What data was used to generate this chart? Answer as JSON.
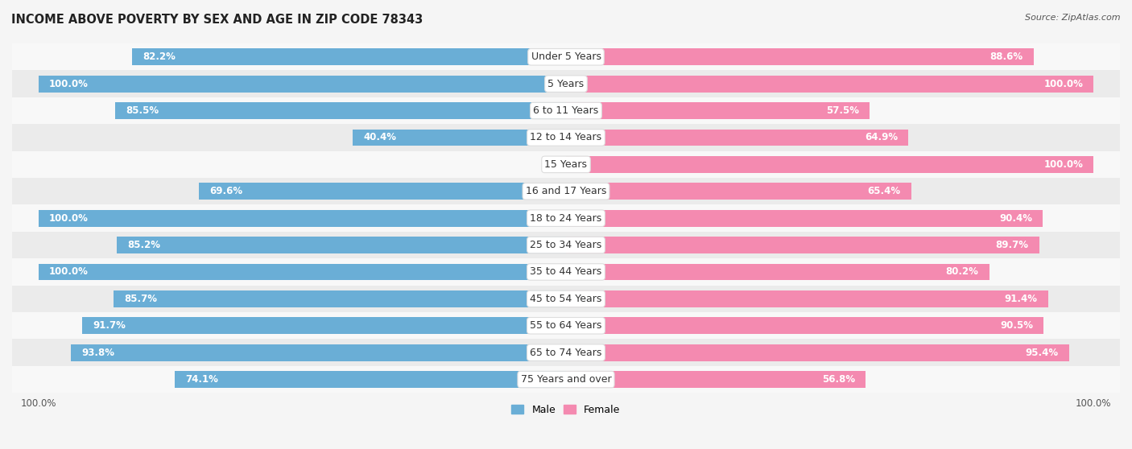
{
  "title": "INCOME ABOVE POVERTY BY SEX AND AGE IN ZIP CODE 78343",
  "source": "Source: ZipAtlas.com",
  "categories": [
    "Under 5 Years",
    "5 Years",
    "6 to 11 Years",
    "12 to 14 Years",
    "15 Years",
    "16 and 17 Years",
    "18 to 24 Years",
    "25 to 34 Years",
    "35 to 44 Years",
    "45 to 54 Years",
    "55 to 64 Years",
    "65 to 74 Years",
    "75 Years and over"
  ],
  "male": [
    82.2,
    100.0,
    85.5,
    40.4,
    0.0,
    69.6,
    100.0,
    85.2,
    100.0,
    85.7,
    91.7,
    93.8,
    74.1
  ],
  "female": [
    88.6,
    100.0,
    57.5,
    64.9,
    100.0,
    65.4,
    90.4,
    89.7,
    80.2,
    91.4,
    90.5,
    95.4,
    56.8
  ],
  "male_color": "#6aaed6",
  "female_color": "#f48ab0",
  "male_light_color": "#b8d9ee",
  "female_light_color": "#f9c5d8",
  "male_label": "Male",
  "female_label": "Female",
  "bar_height": 0.62,
  "background_color": "#f5f5f5",
  "stripe_color_odd": "#ebebeb",
  "stripe_color_even": "#f8f8f8",
  "title_fontsize": 10.5,
  "label_fontsize": 8.5,
  "cat_fontsize": 9,
  "tick_fontsize": 8.5,
  "source_fontsize": 8
}
